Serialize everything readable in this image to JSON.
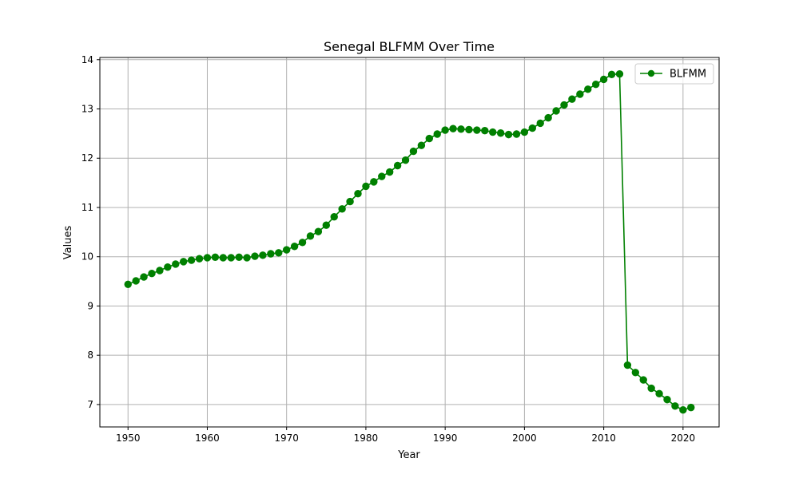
{
  "chart_data": {
    "type": "line",
    "title": "Senegal BLFMM Over Time",
    "xlabel": "Year",
    "ylabel": "Values",
    "xlim": [
      1946.45,
      2024.55
    ],
    "ylim": [
      6.545,
      14.045
    ],
    "xticks": [
      1950,
      1960,
      1970,
      1980,
      1990,
      2000,
      2010,
      2020
    ],
    "yticks": [
      7,
      8,
      9,
      10,
      11,
      12,
      13,
      14
    ],
    "grid": true,
    "legend_position": "top-right",
    "series": [
      {
        "name": "BLFMM",
        "color": "#008000",
        "marker": "circle",
        "x": [
          1950,
          1951,
          1952,
          1953,
          1954,
          1955,
          1956,
          1957,
          1958,
          1959,
          1960,
          1961,
          1962,
          1963,
          1964,
          1965,
          1966,
          1967,
          1968,
          1969,
          1970,
          1971,
          1972,
          1973,
          1974,
          1975,
          1976,
          1977,
          1978,
          1979,
          1980,
          1981,
          1982,
          1983,
          1984,
          1985,
          1986,
          1987,
          1988,
          1989,
          1990,
          1991,
          1992,
          1993,
          1994,
          1995,
          1996,
          1997,
          1998,
          1999,
          2000,
          2001,
          2002,
          2003,
          2004,
          2005,
          2006,
          2007,
          2008,
          2009,
          2010,
          2011,
          2012,
          2013,
          2014,
          2015,
          2016,
          2017,
          2018,
          2019,
          2020,
          2021
        ],
        "y": [
          9.44,
          9.51,
          9.59,
          9.66,
          9.72,
          9.79,
          9.85,
          9.9,
          9.93,
          9.96,
          9.98,
          9.99,
          9.98,
          9.98,
          9.99,
          9.98,
          10.01,
          10.03,
          10.06,
          10.08,
          10.14,
          10.21,
          10.29,
          10.42,
          10.51,
          10.64,
          10.81,
          10.97,
          11.12,
          11.28,
          11.43,
          11.52,
          11.63,
          11.72,
          11.85,
          11.96,
          12.14,
          12.26,
          12.4,
          12.49,
          12.57,
          12.6,
          12.59,
          12.58,
          12.57,
          12.56,
          12.53,
          12.51,
          12.48,
          12.49,
          12.53,
          12.61,
          12.71,
          12.82,
          12.96,
          13.08,
          13.2,
          13.3,
          13.4,
          13.5,
          13.6,
          13.7,
          13.71,
          7.8,
          7.65,
          7.5,
          7.33,
          7.22,
          7.1,
          6.97,
          6.89,
          6.94
        ]
      }
    ]
  }
}
